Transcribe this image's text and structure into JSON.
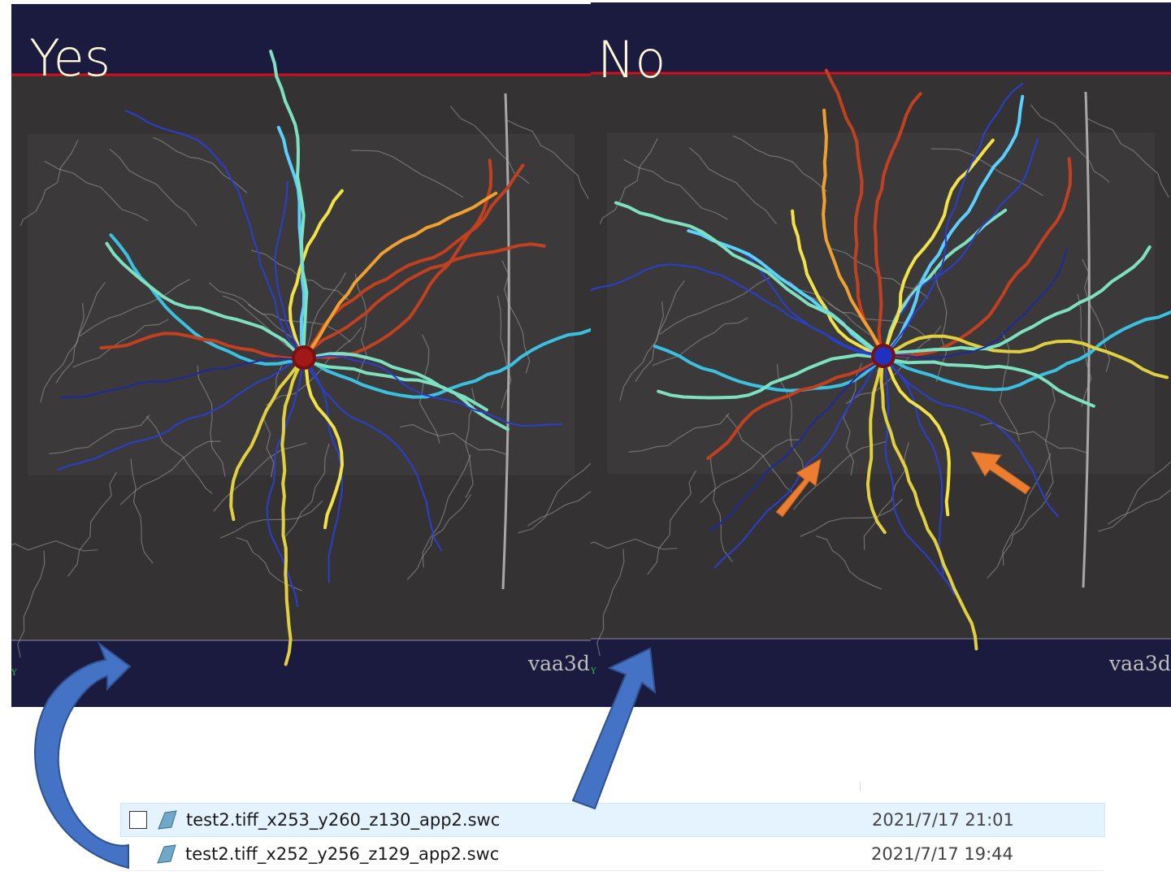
{
  "panels": [
    {
      "label": "Yes",
      "watermark": "vaa3d",
      "axis_label": "Y"
    },
    {
      "label": "No",
      "watermark": "vaa3d",
      "axis_label": "Y"
    }
  ],
  "files": [
    {
      "name": "test2.tiff_x253_y260_z130_app2.swc",
      "date": "2021/7/17 21:01"
    },
    {
      "name": "test2.tiff_x252_y256_z129_app2.swc",
      "date": "2021/7/17 19:44"
    }
  ]
}
